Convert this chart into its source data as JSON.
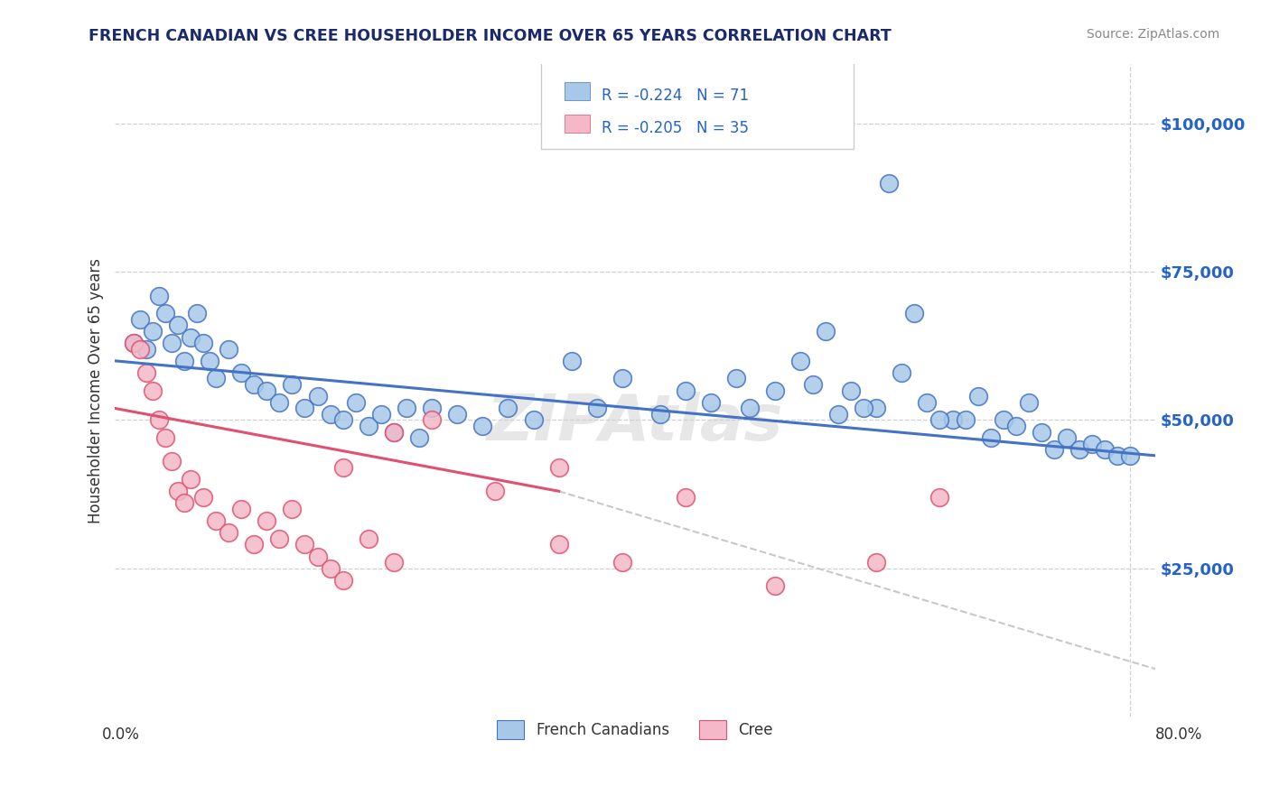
{
  "title": "FRENCH CANADIAN VS CREE HOUSEHOLDER INCOME OVER 65 YEARS CORRELATION CHART",
  "source_text": "Source: ZipAtlas.com",
  "ylabel": "Householder Income Over 65 years",
  "watermark": "ZIPAtlas",
  "legend_r1": "R = -0.224",
  "legend_n1": "N = 71",
  "legend_r2": "R = -0.205",
  "legend_n2": "N = 35",
  "legend_label1": "French Canadians",
  "legend_label2": "Cree",
  "blue_color": "#a8c8e8",
  "pink_color": "#f4b8c8",
  "line_blue": "#4472c4",
  "line_pink": "#e05070",
  "line_gray": "#c8c8c8",
  "text_blue": "#2563c7",
  "text_dark": "#333333",
  "background_color": "#ffffff",
  "grid_color": "#d0d0d0",
  "xlim": [
    0.0,
    82.0
  ],
  "ylim": [
    0,
    110000
  ],
  "french_x": [
    1.5,
    2.0,
    2.5,
    3.0,
    3.5,
    4.0,
    4.5,
    5.0,
    5.5,
    6.0,
    6.5,
    7.0,
    7.5,
    8.0,
    9.0,
    10.0,
    11.0,
    12.0,
    13.0,
    14.0,
    15.0,
    16.0,
    17.0,
    18.0,
    19.0,
    20.0,
    21.0,
    22.0,
    23.0,
    24.0,
    25.0,
    27.0,
    29.0,
    31.0,
    33.0,
    36.0,
    38.0,
    40.0,
    43.0,
    45.0,
    47.0,
    49.0,
    50.0,
    52.0,
    54.0,
    56.0,
    58.0,
    60.0,
    62.0,
    64.0,
    66.0,
    68.0,
    70.0,
    72.0,
    55.0,
    57.0,
    59.0,
    61.0,
    63.0,
    65.0,
    67.0,
    69.0,
    71.0,
    73.0,
    74.0,
    75.0,
    76.0,
    77.0,
    78.0,
    79.0,
    80.0
  ],
  "french_y": [
    63000,
    67000,
    62000,
    65000,
    71000,
    68000,
    63000,
    66000,
    60000,
    64000,
    68000,
    63000,
    60000,
    57000,
    62000,
    58000,
    56000,
    55000,
    53000,
    56000,
    52000,
    54000,
    51000,
    50000,
    53000,
    49000,
    51000,
    48000,
    52000,
    47000,
    52000,
    51000,
    49000,
    52000,
    50000,
    60000,
    52000,
    57000,
    51000,
    55000,
    53000,
    57000,
    52000,
    55000,
    60000,
    65000,
    55000,
    52000,
    58000,
    53000,
    50000,
    54000,
    50000,
    53000,
    56000,
    51000,
    52000,
    90000,
    68000,
    50000,
    50000,
    47000,
    49000,
    48000,
    45000,
    47000,
    45000,
    46000,
    45000,
    44000,
    44000
  ],
  "cree_x": [
    1.5,
    2.0,
    2.5,
    3.0,
    3.5,
    4.0,
    4.5,
    5.0,
    5.5,
    6.0,
    7.0,
    8.0,
    9.0,
    10.0,
    11.0,
    12.0,
    13.0,
    14.0,
    15.0,
    16.0,
    17.0,
    18.0,
    20.0,
    22.0,
    25.0,
    30.0,
    35.0,
    40.0,
    45.0,
    52.0,
    60.0,
    65.0,
    22.0,
    18.0,
    35.0
  ],
  "cree_y": [
    63000,
    62000,
    58000,
    55000,
    50000,
    47000,
    43000,
    38000,
    36000,
    40000,
    37000,
    33000,
    31000,
    35000,
    29000,
    33000,
    30000,
    35000,
    29000,
    27000,
    25000,
    23000,
    30000,
    48000,
    50000,
    38000,
    29000,
    26000,
    37000,
    22000,
    26000,
    37000,
    26000,
    42000,
    42000
  ],
  "french_line_x0": 0.0,
  "french_line_x1": 82.0,
  "french_line_y0": 60000,
  "french_line_y1": 44000,
  "pink_line_x0": 0.0,
  "pink_line_x1": 35.0,
  "pink_line_y0": 52000,
  "pink_line_y1": 38000,
  "gray_line_x0": 35.0,
  "gray_line_x1": 82.0,
  "gray_line_y0": 38000,
  "gray_line_y1": 8000
}
